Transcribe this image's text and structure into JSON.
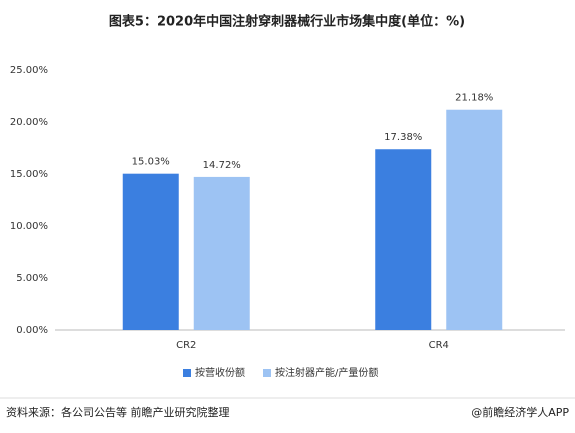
{
  "chart_data": {
    "type": "bar",
    "title": "图表5：2020年中国注射穿刺器械行业市场集中度(单位：%)",
    "categories": [
      "CR2",
      "CR4"
    ],
    "series": [
      {
        "name": "按营收份额",
        "color": "#3b7fe0",
        "values": [
          15.03,
          17.38
        ],
        "value_labels": [
          "15.03%",
          "17.38%"
        ]
      },
      {
        "name": "按注射器产能/产量份额",
        "color": "#9dc3f3",
        "values": [
          14.72,
          21.18
        ],
        "value_labels": [
          "14.72%",
          "21.18%"
        ]
      }
    ],
    "ylim": [
      0,
      25
    ],
    "yticks": [
      {
        "value": 0,
        "label": "0.00%"
      },
      {
        "value": 5,
        "label": "5.00%"
      },
      {
        "value": 10,
        "label": "10.00%"
      },
      {
        "value": 15,
        "label": "15.00%"
      },
      {
        "value": 20,
        "label": "20.00%"
      },
      {
        "value": 25,
        "label": "25.00%"
      }
    ],
    "grid": false,
    "legend": "bottom",
    "source": "资料来源：各公司公告等 前瞻产业研究院整理",
    "credit": "@前瞻经济学人APP"
  }
}
